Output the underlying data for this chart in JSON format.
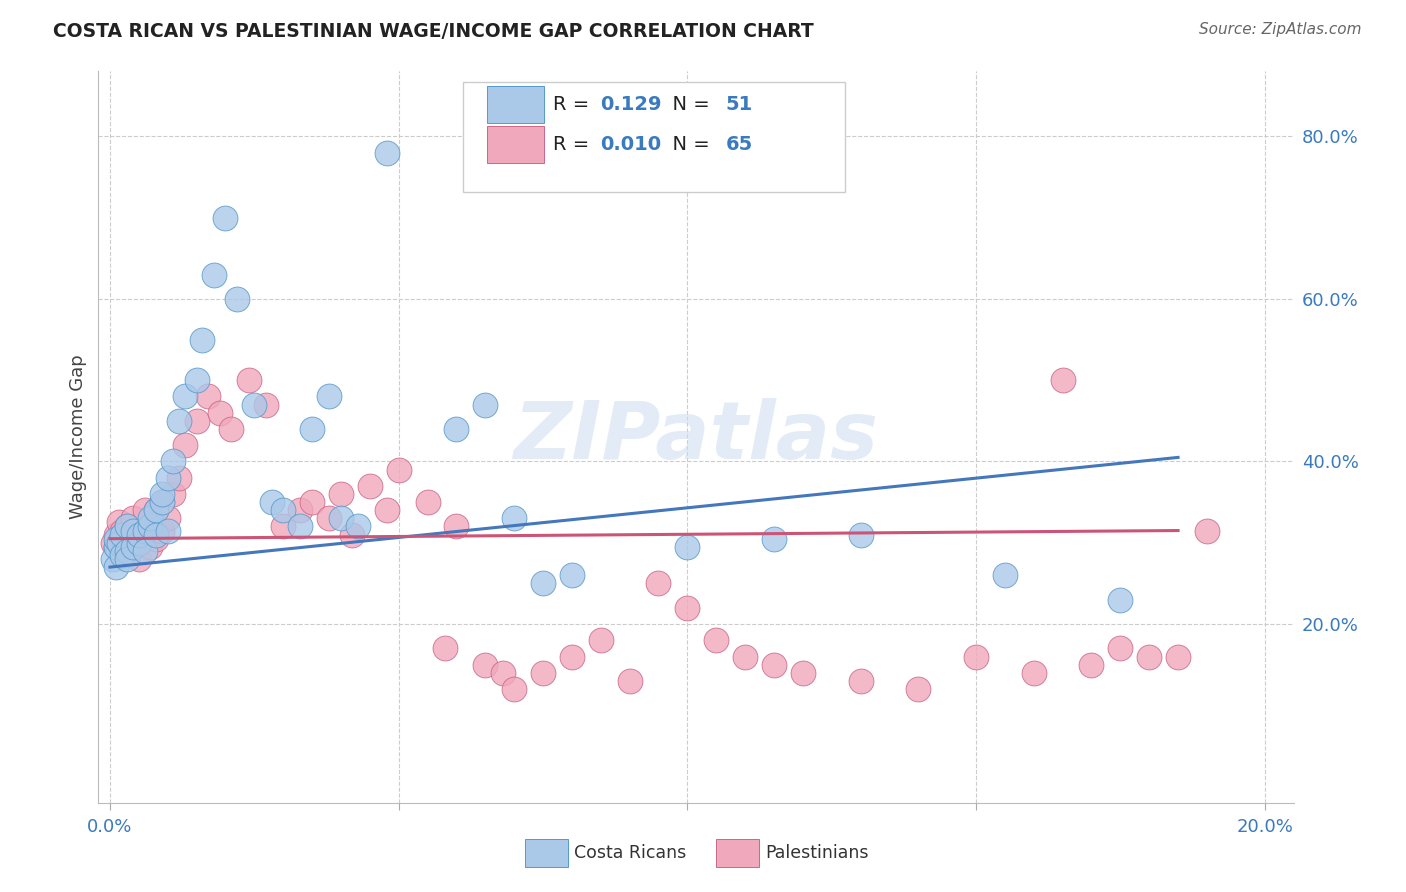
{
  "title": "COSTA RICAN VS PALESTINIAN WAGE/INCOME GAP CORRELATION CHART",
  "source": "Source: ZipAtlas.com",
  "ylabel": "Wage/Income Gap",
  "xlim": [
    -0.002,
    0.205
  ],
  "ylim": [
    -0.02,
    0.88
  ],
  "ytick_positions": [
    0.2,
    0.4,
    0.6,
    0.8
  ],
  "ytick_labels": [
    "20.0%",
    "40.0%",
    "60.0%",
    "80.0%"
  ],
  "xtick_positions": [
    0.0,
    0.05,
    0.1,
    0.15,
    0.2
  ],
  "xtick_labels": [
    "0.0%",
    "",
    "",
    "",
    "20.0%"
  ],
  "legend_R_blue": "0.129",
  "legend_N_blue": "51",
  "legend_R_pink": "0.010",
  "legend_N_pink": "65",
  "blue_fill": "#aac8e8",
  "blue_edge": "#5599cc",
  "pink_fill": "#f0a8bc",
  "pink_edge": "#cc6688",
  "trend_blue_color": "#4477bb",
  "trend_pink_color": "#cc5577",
  "watermark": "ZIPatlas",
  "blue_trend_x0": 0.0,
  "blue_trend_y0": 0.27,
  "blue_trend_x1": 0.185,
  "blue_trend_y1": 0.405,
  "pink_trend_x0": 0.0,
  "pink_trend_y0": 0.305,
  "pink_trend_x1": 0.185,
  "pink_trend_y1": 0.315,
  "costa_rican_x": [
    0.0005,
    0.001,
    0.001,
    0.001,
    0.0015,
    0.002,
    0.002,
    0.003,
    0.003,
    0.003,
    0.004,
    0.004,
    0.005,
    0.005,
    0.006,
    0.006,
    0.007,
    0.007,
    0.008,
    0.008,
    0.009,
    0.009,
    0.01,
    0.01,
    0.011,
    0.012,
    0.013,
    0.015,
    0.016,
    0.018,
    0.02,
    0.022,
    0.025,
    0.028,
    0.03,
    0.033,
    0.035,
    0.038,
    0.04,
    0.043,
    0.048,
    0.06,
    0.065,
    0.07,
    0.075,
    0.08,
    0.1,
    0.115,
    0.13,
    0.155,
    0.175
  ],
  "costa_rican_y": [
    0.28,
    0.27,
    0.295,
    0.305,
    0.3,
    0.285,
    0.31,
    0.32,
    0.29,
    0.28,
    0.315,
    0.295,
    0.3,
    0.31,
    0.315,
    0.29,
    0.32,
    0.33,
    0.34,
    0.31,
    0.35,
    0.36,
    0.38,
    0.315,
    0.4,
    0.45,
    0.48,
    0.5,
    0.55,
    0.63,
    0.7,
    0.6,
    0.47,
    0.35,
    0.34,
    0.32,
    0.44,
    0.48,
    0.33,
    0.32,
    0.78,
    0.44,
    0.47,
    0.33,
    0.25,
    0.26,
    0.295,
    0.305,
    0.31,
    0.26,
    0.23
  ],
  "palestinian_x": [
    0.0005,
    0.001,
    0.001,
    0.0015,
    0.002,
    0.002,
    0.003,
    0.003,
    0.004,
    0.004,
    0.005,
    0.005,
    0.006,
    0.006,
    0.007,
    0.007,
    0.008,
    0.008,
    0.009,
    0.009,
    0.01,
    0.011,
    0.012,
    0.013,
    0.015,
    0.017,
    0.019,
    0.021,
    0.024,
    0.027,
    0.03,
    0.033,
    0.035,
    0.038,
    0.04,
    0.042,
    0.045,
    0.048,
    0.05,
    0.055,
    0.058,
    0.06,
    0.065,
    0.068,
    0.07,
    0.075,
    0.08,
    0.085,
    0.09,
    0.095,
    0.1,
    0.105,
    0.11,
    0.115,
    0.12,
    0.13,
    0.14,
    0.15,
    0.16,
    0.165,
    0.17,
    0.175,
    0.18,
    0.185,
    0.19
  ],
  "palestinian_y": [
    0.3,
    0.295,
    0.31,
    0.325,
    0.29,
    0.315,
    0.3,
    0.32,
    0.305,
    0.33,
    0.28,
    0.31,
    0.315,
    0.34,
    0.295,
    0.32,
    0.305,
    0.34,
    0.315,
    0.35,
    0.33,
    0.36,
    0.38,
    0.42,
    0.45,
    0.48,
    0.46,
    0.44,
    0.5,
    0.47,
    0.32,
    0.34,
    0.35,
    0.33,
    0.36,
    0.31,
    0.37,
    0.34,
    0.39,
    0.35,
    0.17,
    0.32,
    0.15,
    0.14,
    0.12,
    0.14,
    0.16,
    0.18,
    0.13,
    0.25,
    0.22,
    0.18,
    0.16,
    0.15,
    0.14,
    0.13,
    0.12,
    0.16,
    0.14,
    0.5,
    0.15,
    0.17,
    0.16,
    0.16,
    0.315
  ]
}
